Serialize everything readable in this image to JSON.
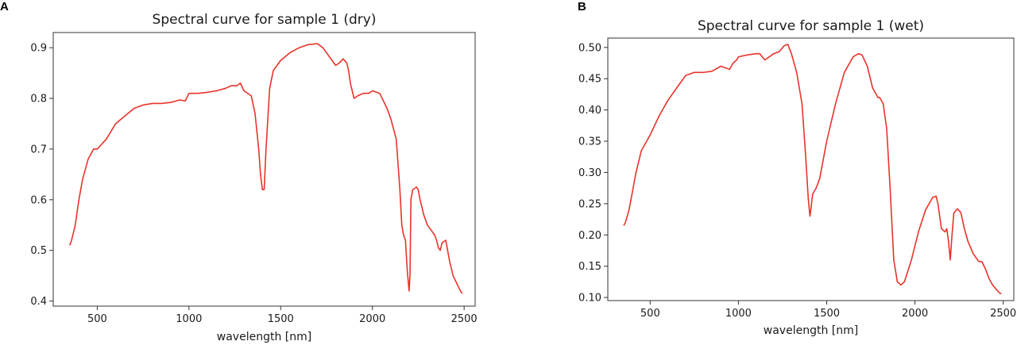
{
  "panels": {
    "a": {
      "letter": "A"
    },
    "b": {
      "letter": "B"
    }
  },
  "colors": {
    "line": "#e8332a",
    "axis": "#333333"
  },
  "chart_data": [
    {
      "type": "line",
      "title": "Spectral curve for sample 1 (dry)",
      "xlabel": "wavelength [nm]",
      "ylabel": "",
      "xlim": [
        260,
        2560
      ],
      "ylim": [
        0.39,
        0.93
      ],
      "xticks": [
        500,
        1000,
        1500,
        2000,
        2500
      ],
      "yticks": [
        0.4,
        0.5,
        0.6,
        0.7,
        0.8,
        0.9
      ],
      "ytick_labels": [
        "0.4",
        "0.5",
        "0.6",
        "0.7",
        "0.8",
        "0.9"
      ],
      "grid": false,
      "series": [
        {
          "x": [
            350,
            360,
            380,
            400,
            420,
            450,
            480,
            500,
            550,
            600,
            650,
            700,
            750,
            800,
            850,
            900,
            950,
            980,
            1000,
            1050,
            1100,
            1150,
            1200,
            1230,
            1260,
            1280,
            1300,
            1340,
            1360,
            1380,
            1390,
            1400,
            1410,
            1420,
            1440,
            1460,
            1500,
            1550,
            1600,
            1650,
            1700,
            1730,
            1760,
            1800,
            1820,
            1840,
            1860,
            1870,
            1880,
            1900,
            1920,
            1950,
            1980,
            2000,
            2040,
            2080,
            2100,
            2130,
            2150,
            2160,
            2170,
            2180,
            2190,
            2200,
            2205,
            2210,
            2220,
            2240,
            2250,
            2260,
            2280,
            2300,
            2320,
            2340,
            2350,
            2360,
            2370,
            2380,
            2400,
            2420,
            2440,
            2460,
            2480,
            2490
          ],
          "y": [
            0.51,
            0.52,
            0.55,
            0.6,
            0.64,
            0.68,
            0.7,
            0.7,
            0.72,
            0.75,
            0.765,
            0.78,
            0.787,
            0.79,
            0.79,
            0.792,
            0.797,
            0.795,
            0.81,
            0.81,
            0.812,
            0.815,
            0.82,
            0.825,
            0.825,
            0.83,
            0.815,
            0.805,
            0.77,
            0.7,
            0.65,
            0.62,
            0.62,
            0.7,
            0.82,
            0.855,
            0.875,
            0.89,
            0.9,
            0.906,
            0.908,
            0.9,
            0.885,
            0.865,
            0.87,
            0.878,
            0.87,
            0.855,
            0.83,
            0.8,
            0.805,
            0.81,
            0.81,
            0.815,
            0.81,
            0.78,
            0.76,
            0.72,
            0.62,
            0.55,
            0.53,
            0.52,
            0.46,
            0.42,
            0.45,
            0.6,
            0.62,
            0.625,
            0.62,
            0.6,
            0.57,
            0.55,
            0.54,
            0.53,
            0.52,
            0.505,
            0.5,
            0.515,
            0.52,
            0.48,
            0.45,
            0.435,
            0.42,
            0.415
          ]
        }
      ]
    },
    {
      "type": "line",
      "title": "Spectral curve for sample 1 (wet)",
      "xlabel": "wavelength [nm]",
      "ylabel": "",
      "xlim": [
        260,
        2560
      ],
      "ylim": [
        0.095,
        0.515
      ],
      "xticks": [
        500,
        1000,
        1500,
        2000,
        2500
      ],
      "yticks": [
        0.1,
        0.15,
        0.2,
        0.25,
        0.3,
        0.35,
        0.4,
        0.45,
        0.5
      ],
      "ytick_labels": [
        "0.10",
        "0.15",
        "0.20",
        "0.25",
        "0.30",
        "0.35",
        "0.40",
        "0.45",
        "0.50"
      ],
      "grid": false,
      "series": [
        {
          "x": [
            350,
            360,
            380,
            400,
            420,
            450,
            480,
            500,
            550,
            600,
            650,
            700,
            750,
            800,
            850,
            900,
            950,
            970,
            990,
            1000,
            1050,
            1100,
            1120,
            1150,
            1200,
            1230,
            1260,
            1280,
            1300,
            1330,
            1360,
            1380,
            1395,
            1405,
            1410,
            1420,
            1440,
            1460,
            1500,
            1550,
            1600,
            1650,
            1680,
            1700,
            1730,
            1760,
            1790,
            1800,
            1820,
            1840,
            1860,
            1880,
            1900,
            1920,
            1940,
            1980,
            2020,
            2060,
            2100,
            2120,
            2130,
            2150,
            2170,
            2180,
            2190,
            2200,
            2210,
            2220,
            2240,
            2260,
            2280,
            2300,
            2330,
            2360,
            2380,
            2400,
            2420,
            2440,
            2460,
            2480,
            2490
          ],
          "y": [
            0.215,
            0.22,
            0.24,
            0.27,
            0.3,
            0.335,
            0.35,
            0.36,
            0.39,
            0.415,
            0.435,
            0.455,
            0.46,
            0.46,
            0.462,
            0.47,
            0.465,
            0.475,
            0.48,
            0.485,
            0.488,
            0.49,
            0.49,
            0.48,
            0.49,
            0.493,
            0.503,
            0.505,
            0.49,
            0.46,
            0.41,
            0.33,
            0.26,
            0.23,
            0.24,
            0.265,
            0.275,
            0.29,
            0.35,
            0.41,
            0.46,
            0.485,
            0.49,
            0.488,
            0.47,
            0.435,
            0.42,
            0.42,
            0.41,
            0.37,
            0.27,
            0.16,
            0.125,
            0.12,
            0.125,
            0.16,
            0.205,
            0.24,
            0.26,
            0.262,
            0.25,
            0.21,
            0.205,
            0.21,
            0.19,
            0.16,
            0.2,
            0.235,
            0.242,
            0.236,
            0.21,
            0.19,
            0.17,
            0.158,
            0.157,
            0.145,
            0.13,
            0.12,
            0.113,
            0.107,
            0.106
          ]
        }
      ]
    }
  ]
}
